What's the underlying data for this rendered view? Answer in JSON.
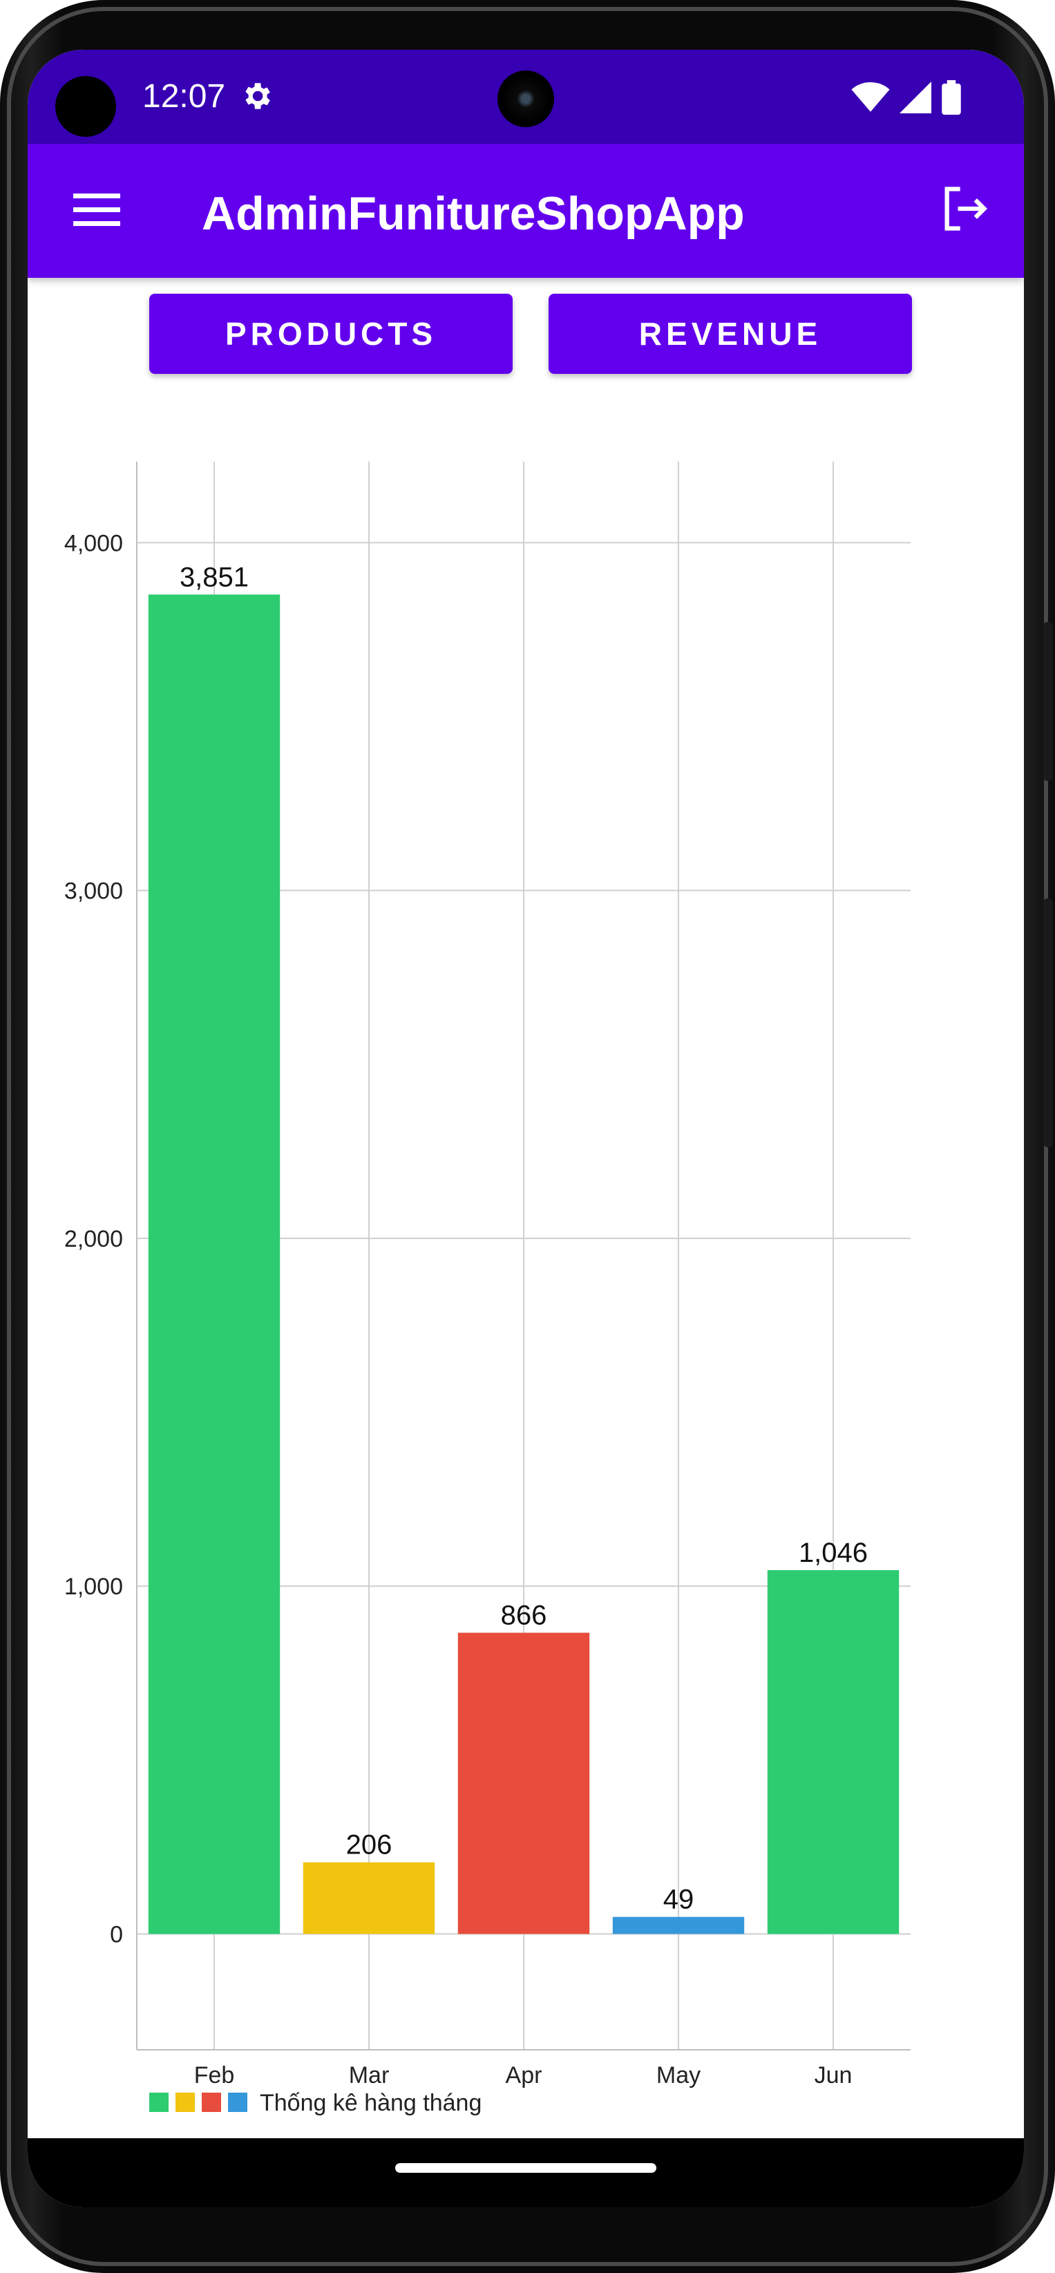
{
  "status_bar": {
    "time": "12:07"
  },
  "app_bar": {
    "title": "AdminFunitureShopApp"
  },
  "buttons": {
    "products_label": "PRODUCTS",
    "revenue_label": "REVENUE"
  },
  "chart_data": {
    "type": "bar",
    "categories": [
      "Feb",
      "Mar",
      "Apr",
      "May",
      "Jun"
    ],
    "values": [
      3851,
      206,
      866,
      49,
      1046
    ],
    "value_labels": [
      "3,851",
      "206",
      "866",
      "49",
      "1,046"
    ],
    "colors": [
      "#2ecc71",
      "#f1c40f",
      "#e74c3c",
      "#3498db",
      "#2ecc71"
    ],
    "ylim": [
      -333,
      4233
    ],
    "y_ticks": [
      0,
      1000,
      2000,
      3000,
      4000
    ],
    "y_tick_labels": [
      "0",
      "1,000",
      "2,000",
      "3,000",
      "4,000"
    ],
    "grid": true,
    "legend": {
      "label": "Thống kê hàng tháng",
      "position": "bottom-left"
    }
  },
  "colors": {
    "status_bar": "#3700b3",
    "app_bar": "#6200ee",
    "button": "#6200ee"
  }
}
